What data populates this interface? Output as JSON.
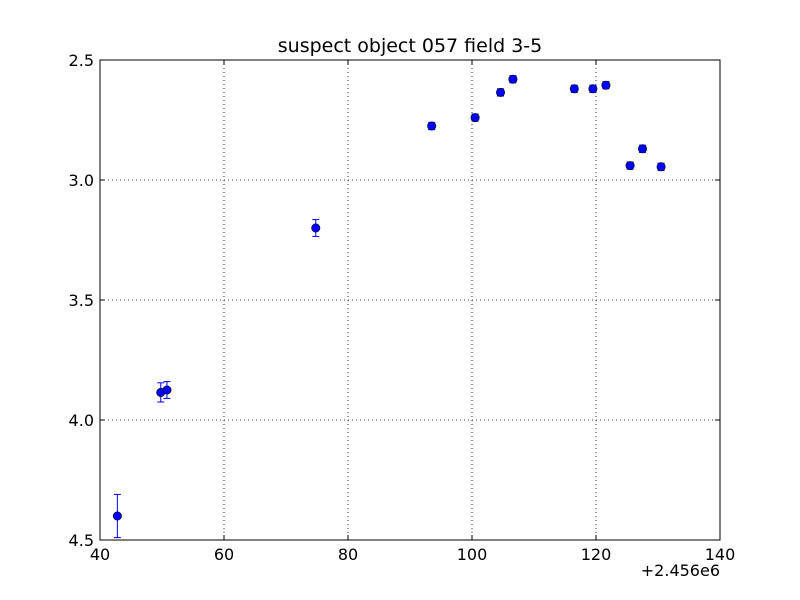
{
  "chart_data": {
    "type": "scatter",
    "title": "suspect object 057 field 3-5",
    "xlabel": "",
    "ylabel": "",
    "x_offset_label": "+2.456e6",
    "xlim": [
      40,
      140
    ],
    "ylim": [
      2.5,
      4.5
    ],
    "y_inverted": true,
    "x_ticks": [
      40,
      60,
      80,
      100,
      120,
      140
    ],
    "x_tick_labels": [
      "40",
      "60",
      "80",
      "100",
      "120",
      "140"
    ],
    "y_ticks": [
      2.5,
      3.0,
      3.5,
      4.0,
      4.5
    ],
    "y_tick_labels": [
      "2.5",
      "3.0",
      "3.5",
      "4.0",
      "4.5"
    ],
    "grid": true,
    "series": [
      {
        "color": "#0000ff",
        "marker": "circle",
        "error_bars": true,
        "points": [
          {
            "x": 42.8,
            "y": 4.4,
            "err": 0.09
          },
          {
            "x": 49.8,
            "y": 3.885,
            "err": 0.04
          },
          {
            "x": 50.8,
            "y": 3.875,
            "err": 0.035
          },
          {
            "x": 74.8,
            "y": 3.2,
            "err": 0.035
          },
          {
            "x": 93.5,
            "y": 2.775,
            "err": 0.015
          },
          {
            "x": 100.5,
            "y": 2.74,
            "err": 0.015
          },
          {
            "x": 104.6,
            "y": 2.635,
            "err": 0.015
          },
          {
            "x": 106.6,
            "y": 2.58,
            "err": 0.015
          },
          {
            "x": 116.5,
            "y": 2.62,
            "err": 0.015
          },
          {
            "x": 119.5,
            "y": 2.62,
            "err": 0.015
          },
          {
            "x": 121.6,
            "y": 2.605,
            "err": 0.015
          },
          {
            "x": 125.5,
            "y": 2.94,
            "err": 0.015
          },
          {
            "x": 127.5,
            "y": 2.87,
            "err": 0.015
          },
          {
            "x": 130.5,
            "y": 2.945,
            "err": 0.015
          }
        ]
      }
    ]
  }
}
